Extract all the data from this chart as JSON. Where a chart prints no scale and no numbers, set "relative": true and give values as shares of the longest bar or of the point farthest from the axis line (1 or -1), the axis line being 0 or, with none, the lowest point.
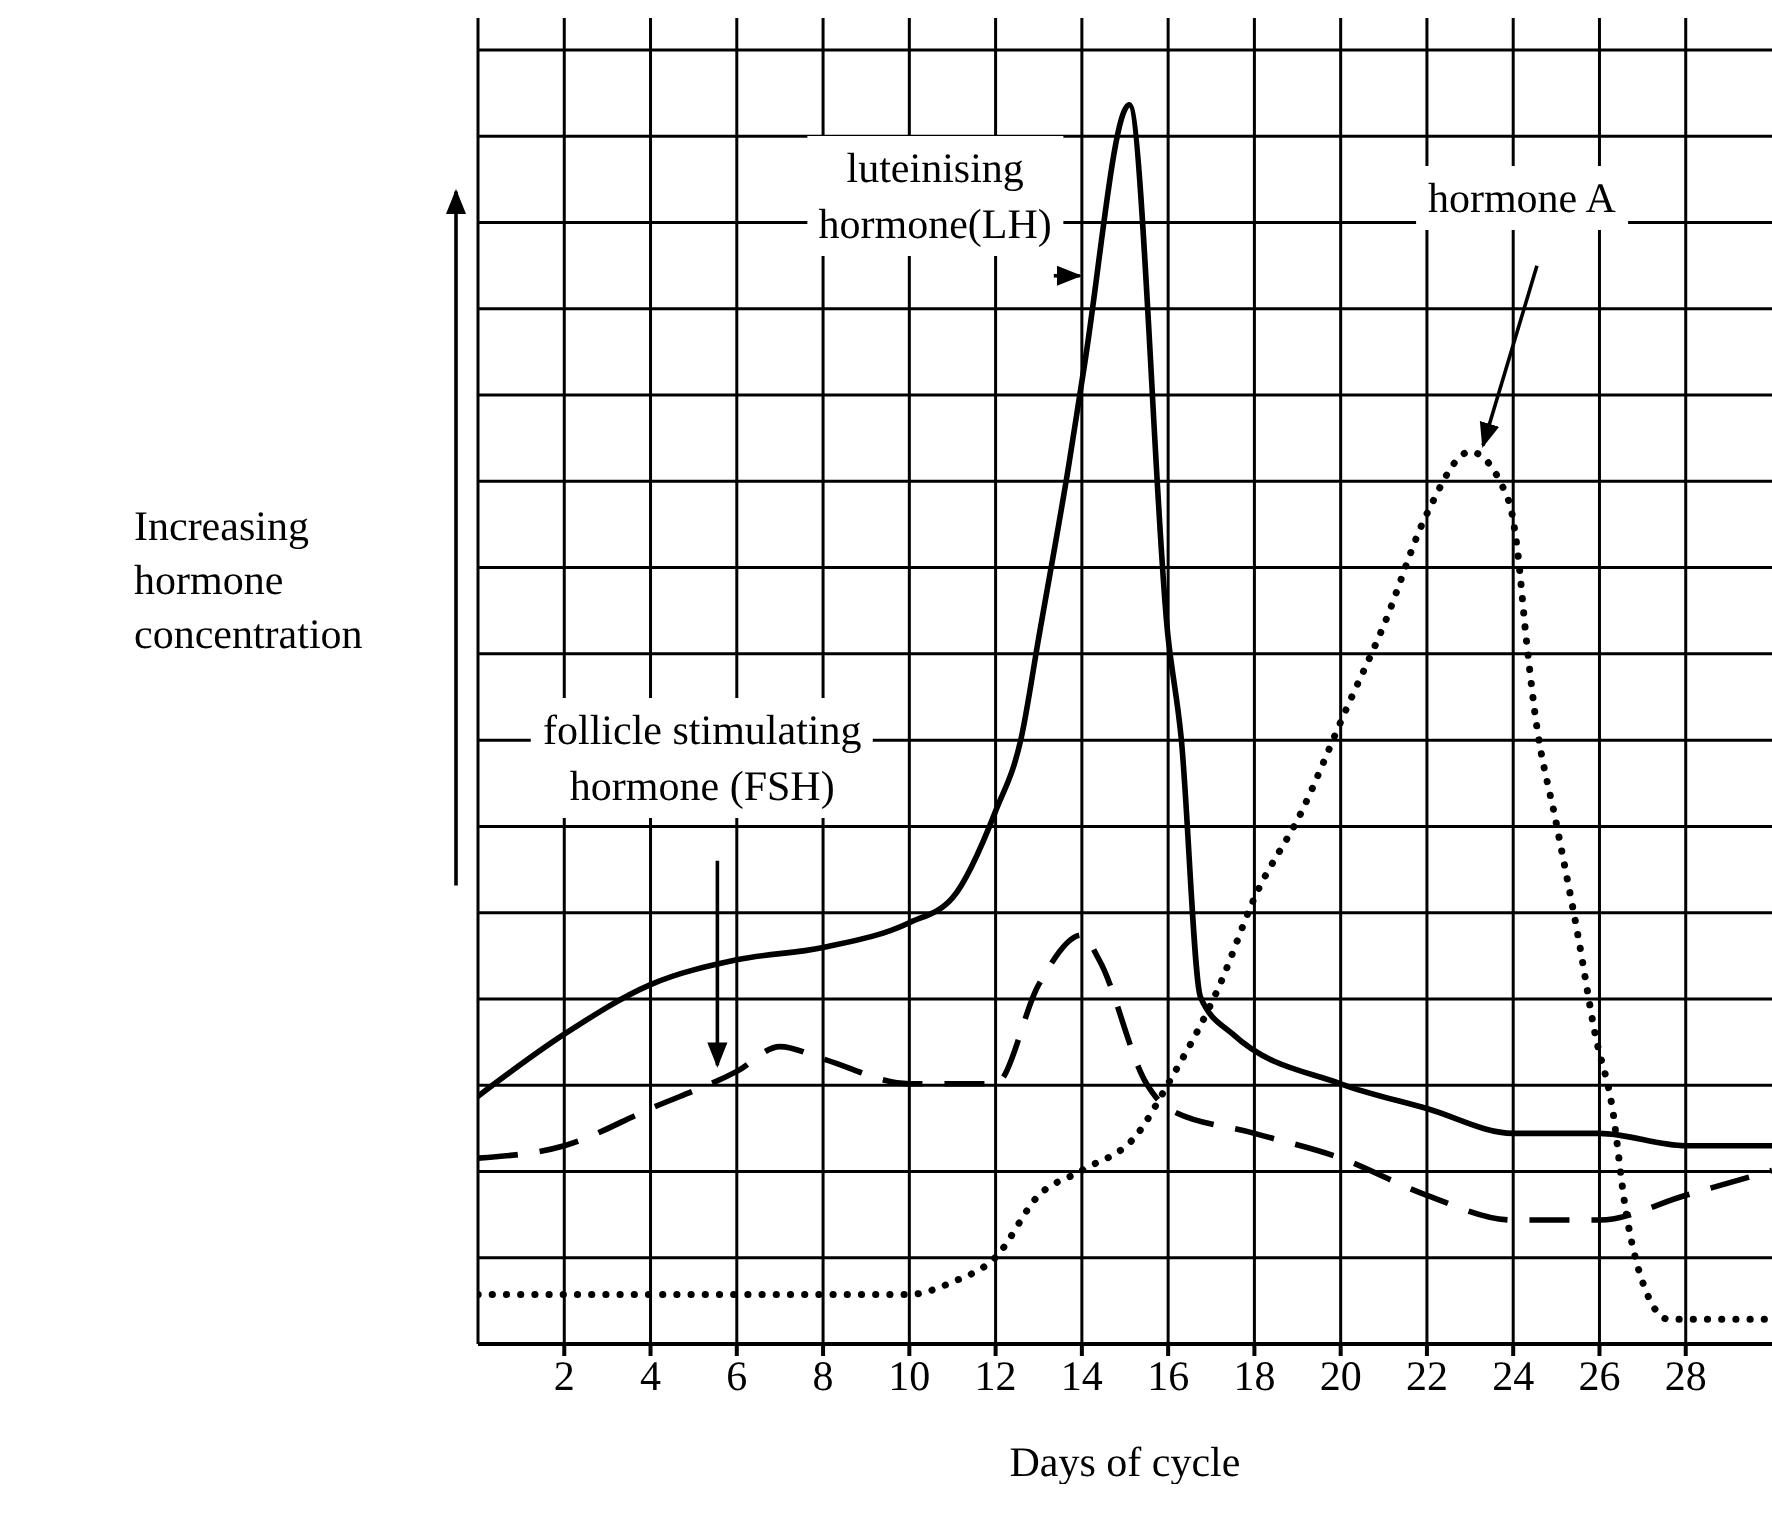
{
  "chart_data": {
    "type": "line",
    "relative": true,
    "xlabel": "Days of cycle",
    "ylabel": "Increasing hormone concentration",
    "xlim": [
      0,
      30
    ],
    "xticks": [
      2,
      4,
      6,
      8,
      10,
      12,
      14,
      16,
      18,
      20,
      22,
      24,
      26,
      28
    ],
    "grid": true,
    "marker": "none",
    "series": [
      {
        "name": "luteinising hormone(LH)",
        "color": "#000000",
        "line_style": "solid",
        "x": [
          0,
          2,
          4,
          6,
          8,
          10,
          11,
          12,
          12.6,
          13,
          13.7,
          14.06,
          15.1,
          16,
          16.3,
          16.75,
          17.5,
          20,
          22,
          24,
          26,
          28,
          30
        ],
        "values": [
          0.2,
          0.25,
          0.29,
          0.31,
          0.32,
          0.34,
          0.36,
          0.43,
          0.49,
          0.57,
          0.71,
          0.79,
          1,
          0.57,
          0.49,
          0.28,
          0.25,
          0.21,
          0.19,
          0.17,
          0.17,
          0.16,
          0.16
        ]
      },
      {
        "name": "follicle stimulating hormone (FSH)",
        "color": "#000000",
        "line_style": "dashed",
        "x": [
          0,
          2,
          4,
          6,
          7,
          8,
          10,
          12,
          13,
          14,
          14.4,
          15.5,
          16,
          18,
          20,
          22,
          24,
          26,
          28,
          30
        ],
        "values": [
          0.15,
          0.16,
          0.19,
          0.22,
          0.24,
          0.23,
          0.21,
          0.21,
          0.29,
          0.33,
          0.31,
          0.21,
          0.19,
          0.17,
          0.15,
          0.12,
          0.1,
          0.1,
          0.12,
          0.14
        ]
      },
      {
        "name": "hormone A",
        "color": "#000000",
        "line_style": "dotted",
        "x": [
          0,
          10,
          11,
          12,
          13,
          14,
          15.3,
          16,
          17.2,
          18,
          19.1,
          20.1,
          21,
          22,
          23,
          23.9,
          24.1,
          24.3,
          24.5,
          25,
          25.5,
          25.9,
          26.3,
          26.6,
          27,
          27.6,
          30
        ],
        "values": [
          0.04,
          0.04,
          0.05,
          0.07,
          0.12,
          0.14,
          0.17,
          0.21,
          0.29,
          0.36,
          0.43,
          0.51,
          0.58,
          0.67,
          0.72,
          0.68,
          0.64,
          0.57,
          0.51,
          0.42,
          0.33,
          0.25,
          0.19,
          0.11,
          0.05,
          0.02,
          0.02
        ]
      }
    ]
  }
}
